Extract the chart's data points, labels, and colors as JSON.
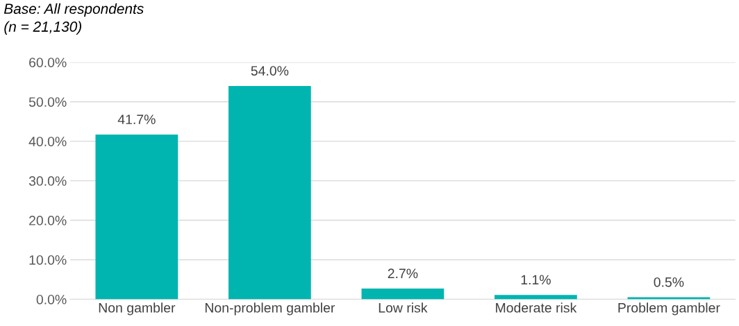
{
  "chart_data": {
    "type": "bar",
    "title": "Base: All respondents",
    "subtitle": "(n = 21,130)",
    "categories": [
      "Non gambler",
      "Non-problem gambler",
      "Low risk",
      "Moderate risk",
      "Problem gambler"
    ],
    "values": [
      41.7,
      54.0,
      2.7,
      1.1,
      0.5
    ],
    "value_labels": [
      "41.7%",
      "54.0%",
      "2.7%",
      "1.1%",
      "0.5%"
    ],
    "color": "#00b5b0",
    "ylim": [
      0,
      60
    ],
    "yticks": [
      {
        "value": 0,
        "label": "0.0%"
      },
      {
        "value": 10,
        "label": "10.0%"
      },
      {
        "value": 20,
        "label": "20.0%"
      },
      {
        "value": 30,
        "label": "30.0%"
      },
      {
        "value": 40,
        "label": "40.0%"
      },
      {
        "value": 50,
        "label": "50.0%"
      },
      {
        "value": 60,
        "label": "60.0%"
      }
    ],
    "grid": "y",
    "legend": false
  }
}
